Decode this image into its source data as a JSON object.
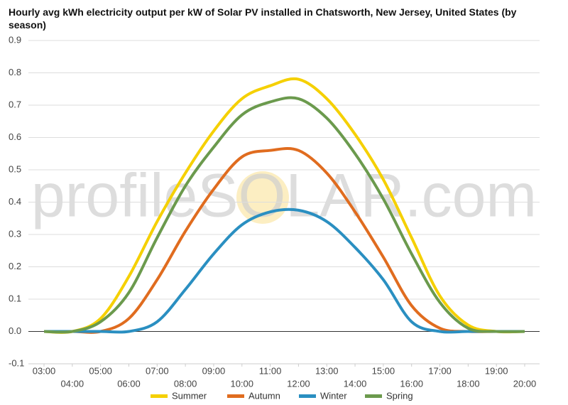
{
  "chart_data": {
    "type": "line",
    "title": "Hourly avg kWh electricity output per kW of Solar PV installed in Chatsworth, New Jersey, United States (by season)",
    "watermark": "profileSOLAR.com",
    "categories": [
      "03:00",
      "04:00",
      "05:00",
      "06:00",
      "07:00",
      "08:00",
      "09:00",
      "10:00",
      "11:00",
      "12:00",
      "13:00",
      "14:00",
      "15:00",
      "16:00",
      "17:00",
      "18:00",
      "19:00",
      "20:00"
    ],
    "series": [
      {
        "name": "Summer",
        "color": "#f5d000",
        "values": [
          0,
          0,
          0.04,
          0.17,
          0.34,
          0.49,
          0.62,
          0.72,
          0.76,
          0.78,
          0.72,
          0.61,
          0.47,
          0.29,
          0.11,
          0.02,
          0,
          0
        ]
      },
      {
        "name": "Autumn",
        "color": "#e06c1f",
        "values": [
          0,
          0,
          0,
          0.04,
          0.16,
          0.31,
          0.44,
          0.54,
          0.56,
          0.56,
          0.49,
          0.37,
          0.23,
          0.08,
          0.01,
          0,
          0,
          0
        ]
      },
      {
        "name": "Winter",
        "color": "#2a8fc1",
        "values": [
          0,
          0,
          0,
          0,
          0.03,
          0.13,
          0.24,
          0.33,
          0.37,
          0.375,
          0.34,
          0.26,
          0.16,
          0.03,
          0,
          0,
          0,
          0
        ]
      },
      {
        "name": "Spring",
        "color": "#6b9a4d",
        "values": [
          0,
          0,
          0.03,
          0.12,
          0.29,
          0.45,
          0.57,
          0.67,
          0.71,
          0.72,
          0.66,
          0.55,
          0.41,
          0.24,
          0.09,
          0.01,
          0,
          0
        ]
      }
    ],
    "ylim": [
      -0.1,
      0.9
    ],
    "yticks": [
      -0.1,
      {
        "value": 0,
        "label": "0.0"
      },
      0.1,
      0.2,
      0.3,
      0.4,
      0.5,
      0.6,
      0.7,
      0.8,
      0.9
    ],
    "grid": true
  }
}
